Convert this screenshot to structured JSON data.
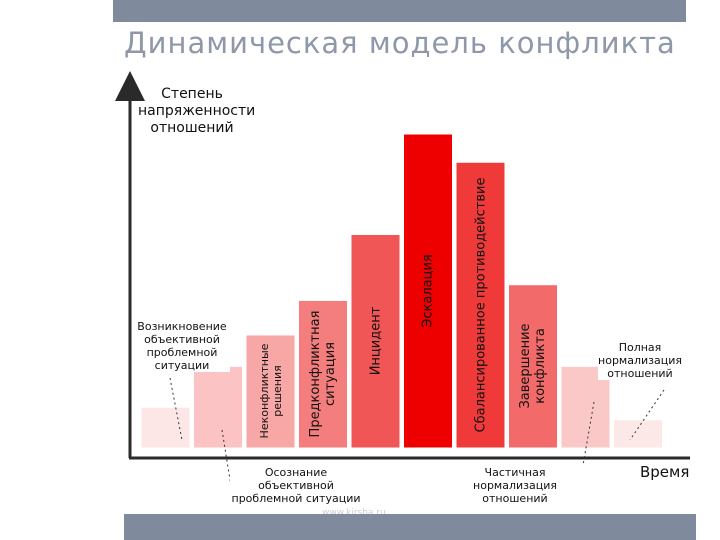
{
  "slide": {
    "title": "Динамическая модель конфликта",
    "watermark": "www.kirsha.ru"
  },
  "axes": {
    "y_label": "Степень напряженности отношений",
    "x_label": "Время"
  },
  "colors": {
    "top_bar": "#7f8a9c",
    "title": "#8e98a8",
    "axis": "#2a2a2a",
    "peak": "#ee0000"
  },
  "stages": [
    {
      "id": "stage-1",
      "label": "",
      "level": 0.13,
      "color": "#fde6e6"
    },
    {
      "id": "stage-2",
      "label": "",
      "level": 0.26,
      "color": "#fbc3c3"
    },
    {
      "id": "stage-3",
      "label": "Неконфликтные решения",
      "level": 0.36,
      "color": "#f8a7a7"
    },
    {
      "id": "stage-4",
      "label": "Предконфликтная ситуация",
      "level": 0.47,
      "color": "#f47d7d"
    },
    {
      "id": "stage-5",
      "label": "Инцидент",
      "level": 0.68,
      "color": "#f05656"
    },
    {
      "id": "stage-6",
      "label": "Эскалация",
      "level": 1.0,
      "color": "#ee0000"
    },
    {
      "id": "stage-7",
      "label": "Сбалансированное противодействие",
      "level": 0.91,
      "color": "#f03a3a"
    },
    {
      "id": "stage-8",
      "label": "Завершение конфликта",
      "level": 0.52,
      "color": "#f26a6a"
    },
    {
      "id": "stage-9",
      "label": "",
      "level": 0.26,
      "color": "#fbc8c8"
    },
    {
      "id": "stage-10",
      "label": "",
      "level": 0.09,
      "color": "#fde8e8"
    }
  ],
  "callouts": {
    "emergence": "Возникновение объективной проблемной ситуации",
    "awareness": "Осознание объективной проблемной ситуации",
    "partial": "Частичная нормализация отношений",
    "full": "Полная нормализация отношений"
  }
}
